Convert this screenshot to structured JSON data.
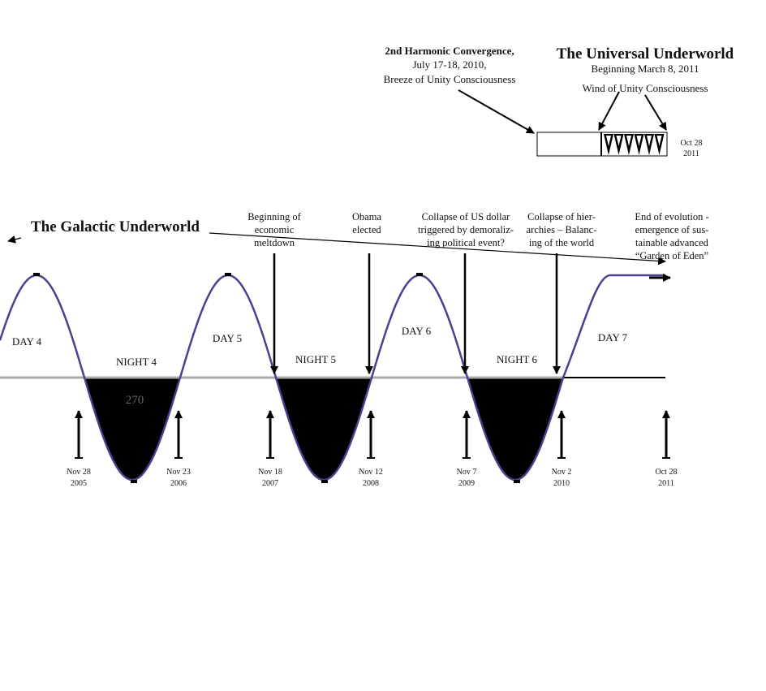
{
  "universal": {
    "title": "The Universal Underworld",
    "subtitle": "Beginning March 8, 2011",
    "wind": "Wind of Unity Consciousness",
    "end_date": [
      "Oct 28",
      "2011"
    ]
  },
  "convergence": [
    "2nd Harmonic Convergence,",
    "July 17-18, 2010,",
    "Breeze of Unity Consciousness"
  ],
  "galactic": {
    "title": "The Galactic Underworld"
  },
  "axis_label": "270",
  "periods": [
    "DAY 4",
    "NIGHT 4",
    "DAY 5",
    "NIGHT 5",
    "DAY 6",
    "NIGHT 6",
    "DAY 7"
  ],
  "events": [
    [
      "Beginning of",
      "economic",
      "meltdown"
    ],
    [
      "Obama",
      "elected"
    ],
    [
      "Collapse of US dollar",
      "triggered by demoraliz-",
      "ing political event?"
    ],
    [
      "Collapse of hier-",
      "archies – Balanc-",
      "ing of the world"
    ],
    [
      "End of evolution -",
      "emergence of sus-",
      "tainable advanced",
      "“Garden of Eden”"
    ]
  ],
  "dates": [
    [
      "Nov 28",
      "2005"
    ],
    [
      "Nov 23",
      "2006"
    ],
    [
      "Nov 18",
      "2007"
    ],
    [
      "Nov 12",
      "2008"
    ],
    [
      "Nov 7",
      "2009"
    ],
    [
      "Nov 2",
      "2010"
    ],
    [
      "Oct 28",
      "2011"
    ]
  ]
}
